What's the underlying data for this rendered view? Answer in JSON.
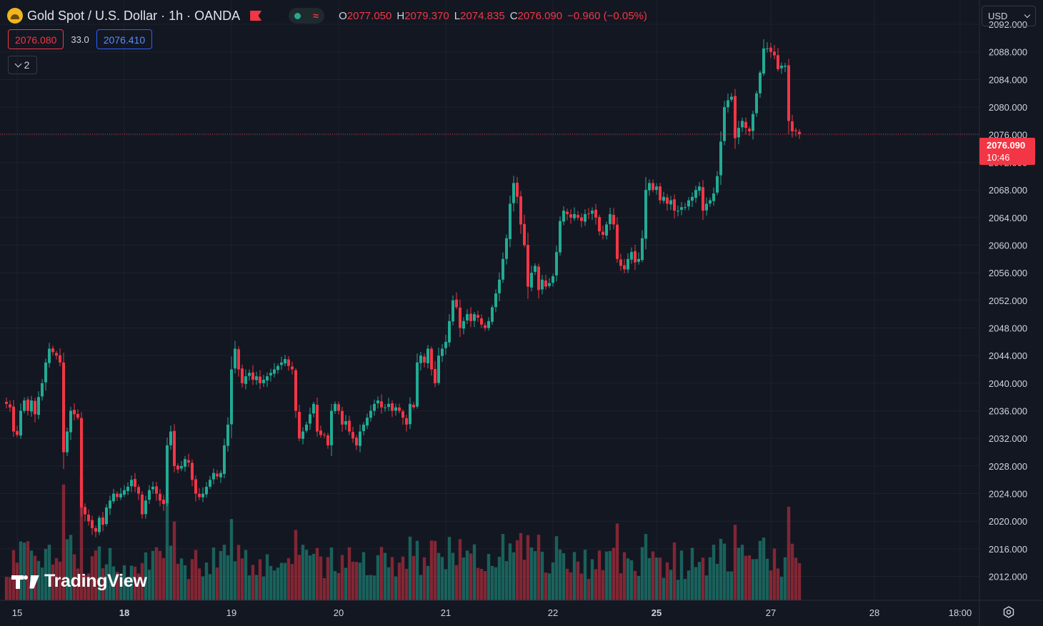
{
  "header": {
    "title": "Gold Spot / U.S. Dollar · 1h · OANDA",
    "logo_icon": "gold-coin-icon",
    "flag_icon": "flag-icon",
    "status_icon": "market-status-icon",
    "ohlc": [
      {
        "key": "O",
        "value": "2077.050"
      },
      {
        "key": "H",
        "value": "2079.370"
      },
      {
        "key": "L",
        "value": "2074.835"
      },
      {
        "key": "C",
        "value": "2076.090"
      }
    ],
    "change": "−0.960 (−0.05%)"
  },
  "trade": {
    "sell": "2076.080",
    "spread": "33.0",
    "buy": "2076.410"
  },
  "indicators_toggle": {
    "count": "2"
  },
  "currency": {
    "selected": "USD"
  },
  "last_price": {
    "price": "2076.090",
    "countdown": "10:46"
  },
  "watermark": "TradingView",
  "colors": {
    "up": "#22ab94",
    "down": "#f23645",
    "background": "#131722",
    "grid": "#1e222d"
  },
  "chart_data": {
    "type": "candlestick",
    "interval": "1h",
    "y_axis": {
      "side": "right",
      "min": 2009,
      "max": 2094,
      "ticks": [
        "2092.000",
        "2088.000",
        "2084.000",
        "2080.000",
        "2076.000",
        "2072.000",
        "2068.000",
        "2064.000",
        "2060.000",
        "2056.000",
        "2052.000",
        "2048.000",
        "2044.000",
        "2040.000",
        "2036.000",
        "2032.000",
        "2028.000",
        "2024.000",
        "2020.000",
        "2016.000",
        "2012.000"
      ]
    },
    "x_axis": {
      "ticks": [
        {
          "label": "15",
          "bold": false,
          "index": 3
        },
        {
          "label": "18",
          "bold": true,
          "index": 33
        },
        {
          "label": "19",
          "bold": false,
          "index": 63
        },
        {
          "label": "20",
          "bold": false,
          "index": 93
        },
        {
          "label": "21",
          "bold": false,
          "index": 123
        },
        {
          "label": "22",
          "bold": false,
          "index": 153
        },
        {
          "label": "25",
          "bold": true,
          "index": 182
        },
        {
          "label": "27",
          "bold": false,
          "index": 214
        },
        {
          "label": "28",
          "bold": false,
          "index": 243
        },
        {
          "label": "18:00",
          "bold": false,
          "index": 267
        }
      ]
    },
    "current_price": 2076.09,
    "grid": true,
    "closes": [
      2037,
      2036.5,
      2033,
      2032.5,
      2036,
      2037.5,
      2036,
      2037.5,
      2035.5,
      2038,
      2040,
      2043,
      2045,
      2044.5,
      2044,
      2043,
      2030,
      2033,
      2036,
      2035.5,
      2035,
      2022,
      2021,
      2020,
      2019,
      2018.5,
      2020.5,
      2019.5,
      2022,
      2023,
      2024,
      2023.5,
      2024,
      2024.5,
      2025,
      2026,
      2025,
      2024,
      2021,
      2023,
      2024.5,
      2025,
      2024,
      2023,
      2022.5,
      2031,
      2033,
      2028,
      2027.5,
      2028,
      2029,
      2028.5,
      2026,
      2024,
      2023.5,
      2024,
      2025,
      2026,
      2027,
      2026.5,
      2027,
      2031,
      2034,
      2042,
      2045,
      2042,
      2040,
      2041,
      2041.5,
      2040.5,
      2041,
      2040,
      2040.5,
      2041,
      2041.5,
      2042,
      2042.5,
      2043,
      2043.5,
      2042.5,
      2042,
      2036,
      2032,
      2033,
      2034,
      2035.5,
      2037,
      2033,
      2032.5,
      2032.5,
      2031,
      2036,
      2037,
      2036,
      2034,
      2034.5,
      2033,
      2032,
      2031,
      2033,
      2034,
      2035,
      2036,
      2037,
      2037.5,
      2036.5,
      2036.5,
      2037,
      2036,
      2036.5,
      2036,
      2035,
      2034,
      2037,
      2036.5,
      2043,
      2044,
      2043,
      2045,
      2042,
      2040,
      2044,
      2045,
      2046,
      2049,
      2052,
      2051,
      2048,
      2049,
      2050,
      2049,
      2050,
      2049.5,
      2048.5,
      2048,
      2049,
      2051,
      2053,
      2055,
      2058,
      2061,
      2066,
      2069,
      2067,
      2063,
      2060,
      2054,
      2056,
      2057,
      2053.5,
      2055,
      2054,
      2054.5,
      2055.5,
      2059,
      2063.5,
      2065,
      2064.5,
      2064,
      2064.5,
      2064,
      2063.5,
      2064.5,
      2064.5,
      2065,
      2064,
      2062,
      2061.5,
      2063,
      2064.5,
      2063,
      2058,
      2057,
      2056.5,
      2058,
      2059,
      2057.5,
      2058,
      2061,
      2068,
      2069,
      2068,
      2068.5,
      2066.5,
      2067,
      2066,
      2066.5,
      2065,
      2065,
      2065.5,
      2065.5,
      2066.5,
      2067,
      2068,
      2068.5,
      2065,
      2066,
      2066.5,
      2067.5,
      2070,
      2075,
      2080,
      2081,
      2081.5,
      2075.5,
      2077,
      2078,
      2077,
      2076.5,
      2079,
      2082,
      2085,
      2088.5,
      2088.5,
      2088,
      2087.5,
      2085.5,
      2086,
      2086,
      2078,
      2076.5,
      2076.5,
      2076.09
    ],
    "volume": {
      "max_bar_fraction": 0.22,
      "note_hidden_scale": true
    }
  }
}
